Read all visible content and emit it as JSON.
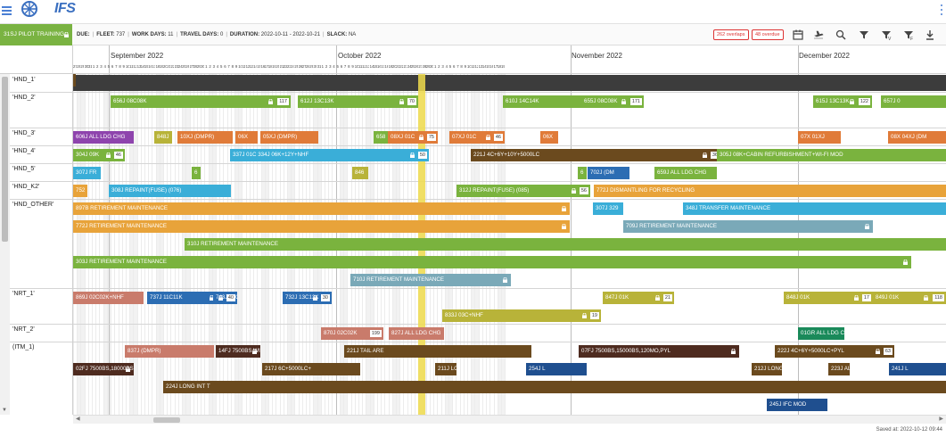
{
  "app": {
    "logo_text": "IFS"
  },
  "plan": {
    "name": "31SJ PILOT TRAINING"
  },
  "info": [
    {
      "label": "DUE:",
      "value": ""
    },
    {
      "label": "FLEET:",
      "value": "737"
    },
    {
      "label": "WORK DAYS:",
      "value": "11"
    },
    {
      "label": "TRAVEL DAYS:",
      "value": "0"
    },
    {
      "label": "DURATION:",
      "value": "2022-10-11 - 2022-10-21"
    },
    {
      "label": "SLACK:",
      "value": "NA"
    }
  ],
  "badges": {
    "overlaps": "262 overlaps",
    "overdue": "48 overdue"
  },
  "toolbar_icons": [
    "calendar-icon",
    "flight-icon",
    "search-icon",
    "filter-icon",
    "filter-v-icon",
    "filter-f-icon",
    "download-icon"
  ],
  "months": [
    {
      "name": "September 2022"
    },
    {
      "name": "October 2022"
    },
    {
      "name": "November 2022"
    },
    {
      "name": "December 2022"
    }
  ],
  "day_sequence": [
    {
      "start": 27,
      "end": 31
    },
    {
      "start": 1,
      "end": 30
    },
    {
      "start": 1,
      "end": 31
    },
    {
      "start": 1,
      "end": 30
    },
    {
      "start": 1,
      "end": 19
    }
  ],
  "resources": [
    "'HND_1'",
    "'HND_2'",
    "'HND_3'",
    "'HND_4'",
    "'HND_5'",
    "'HND_K2'",
    "'HND_OTHER'",
    "'NRT_1'",
    "'NRT_2'",
    "(ITM_1)"
  ],
  "colors": {
    "green": "#7ab33e",
    "dkgreen": "#6aa84f",
    "orange": "#e8a33a",
    "dorange": "#e07b39",
    "blue": "#3aaed8",
    "dblue": "#2c6db3",
    "navy": "#1f4f8f",
    "purple": "#8e44ad",
    "brown": "#6b4a1e",
    "dbrown": "#4e2b1f",
    "salmon": "#c97b6b",
    "teal": "#7aa9b8",
    "olive": "#b8b339",
    "tan": "#d09b64",
    "dteal": "#1a8a5a",
    "dark": "#3c3c3c",
    "gray": "#7f7f7f"
  },
  "bars": [
    {
      "label": "656J 08C08K",
      "tag": "117",
      "color": "green",
      "lock": true
    },
    {
      "label": "612J 13C13K",
      "tag": "70",
      "color": "green",
      "lock": true
    },
    {
      "label": "610J 14C14K",
      "tag": "88",
      "color": "green",
      "lock": true
    },
    {
      "label": "655J 08C08K",
      "tag": "171",
      "color": "green",
      "lock": true
    },
    {
      "label": "615J 13C13K",
      "tag": "122",
      "color": "green",
      "lock": true
    },
    {
      "label": "657J 0",
      "tag": "",
      "color": "green",
      "lock": false
    },
    {
      "label": "606J ALL LDG CHG",
      "tag": "",
      "color": "purple",
      "lock": false
    },
    {
      "label": "848J",
      "tag": "",
      "color": "olive",
      "lock": false
    },
    {
      "label": "10XJ (DMPR)",
      "tag": "",
      "color": "dorange",
      "lock": false
    },
    {
      "label": "06X",
      "tag": "",
      "color": "dorange",
      "lock": false
    },
    {
      "label": "05XJ (DMPR)",
      "tag": "",
      "color": "dorange",
      "lock": false
    },
    {
      "label": "658",
      "tag": "",
      "color": "green",
      "lock": false
    },
    {
      "label": "08XJ 01C",
      "tag": "75",
      "color": "dorange",
      "lock": true
    },
    {
      "label": "07XJ 01C",
      "tag": "46",
      "color": "dorange",
      "lock": true
    },
    {
      "label": "06X",
      "tag": "",
      "color": "dorange",
      "lock": false
    },
    {
      "label": "07X 01XJ",
      "tag": "",
      "color": "dorange",
      "lock": false
    },
    {
      "label": "08X 04XJ (DM",
      "tag": "",
      "color": "dorange",
      "lock": false
    },
    {
      "label": "304J 09K",
      "tag": "46",
      "color": "green",
      "lock": true
    },
    {
      "label": "337J 01C 334J 06K+12Y+NHF",
      "tag": "50",
      "color": "blue",
      "lock": true
    },
    {
      "label": "221J 4C+6Y+10Y+5000LC",
      "tag": "36",
      "color": "brown",
      "lock": true
    },
    {
      "label": "305J 08K+CABIN REFURBISHMENT+WI-FI MOD",
      "tag": "",
      "color": "green",
      "lock": false
    },
    {
      "label": "307J FR",
      "tag": "",
      "color": "blue",
      "lock": false
    },
    {
      "label": "6",
      "tag": "",
      "color": "green",
      "lock": false
    },
    {
      "label": "846",
      "tag": "",
      "color": "olive",
      "lock": false
    },
    {
      "label": "6",
      "tag": "",
      "color": "green",
      "lock": false
    },
    {
      "label": "702J (DM",
      "tag": "",
      "color": "dblue",
      "lock": false
    },
    {
      "label": "659J ALL LDG CHG",
      "tag": "",
      "color": "green",
      "lock": false
    },
    {
      "label": "752",
      "tag": "",
      "color": "orange",
      "lock": false
    },
    {
      "label": "308J REPAINT(FUSE) (076)",
      "tag": "",
      "color": "blue",
      "lock": false
    },
    {
      "label": "312J REPAINT(FUSE) (085)",
      "tag": "56",
      "color": "green",
      "lock": true
    },
    {
      "label": "772J DISMANTLING FOR RECYCLING",
      "tag": "",
      "color": "orange",
      "lock": false
    },
    {
      "label": "897B RETIREMENT MAINTENANCE",
      "tag": "",
      "color": "orange",
      "lock": true
    },
    {
      "label": "307J 329",
      "tag": "",
      "color": "blue",
      "lock": false
    },
    {
      "label": "348J TRANSFER MAINTENANCE",
      "tag": "",
      "color": "blue",
      "lock": false
    },
    {
      "label": "772J RETIREMENT MAINTENANCE",
      "tag": "",
      "color": "orange",
      "lock": true
    },
    {
      "label": "709J RETIREMENT MAINTENANCE",
      "tag": "",
      "color": "teal",
      "lock": true
    },
    {
      "label": "310J RETIREMENT MAINTENANCE",
      "tag": "",
      "color": "green",
      "lock": false
    },
    {
      "label": "303J RETIREMENT MAINTENANCE",
      "tag": "",
      "color": "green",
      "lock": true
    },
    {
      "label": "710J RETIREMENT MAINTENANCE",
      "tag": "",
      "color": "teal",
      "lock": true
    },
    {
      "label": "869J 02C02K+NHF",
      "tag": "",
      "color": "salmon",
      "lock": false
    },
    {
      "label": "737J 11C11K",
      "tag": "120",
      "color": "dblue",
      "lock": true
    },
    {
      "label": "743J 09C09K",
      "tag": "40",
      "color": "dblue",
      "lock": true
    },
    {
      "label": "732J 13C13K",
      "tag": "30",
      "color": "dblue",
      "lock": true
    },
    {
      "label": "847J 01K",
      "tag": "21",
      "color": "olive",
      "lock": true
    },
    {
      "label": "848J 01K",
      "tag": "17",
      "color": "olive",
      "lock": true
    },
    {
      "label": "849J 01K",
      "tag": "118",
      "color": "olive",
      "lock": true
    },
    {
      "label": "833J 03C+NHF",
      "tag": "19",
      "color": "olive",
      "lock": true
    },
    {
      "label": "870J 02C02K",
      "tag": "199",
      "color": "salmon",
      "lock": false
    },
    {
      "label": "827J ALL LDG CHG",
      "tag": "",
      "color": "salmon",
      "lock": false
    },
    {
      "label": "01GR ALL LDG CH",
      "tag": "",
      "color": "dteal",
      "lock": false
    },
    {
      "label": "837J (DMPR)",
      "tag": "",
      "color": "salmon",
      "lock": false
    },
    {
      "label": "14FJ 7500BS,WINGTIP",
      "tag": "",
      "color": "dbrown",
      "lock": true
    },
    {
      "label": "221J TAIL ARE",
      "tag": "",
      "color": "brown",
      "lock": false
    },
    {
      "label": "07FJ 7500BS,15000BS,120MO,PYL",
      "tag": "",
      "color": "dbrown",
      "lock": true
    },
    {
      "label": "222J 4C+6Y+5000LC+PYL",
      "tag": "63",
      "color": "brown",
      "lock": true
    },
    {
      "label": "02FJ 7500BS,18000BS",
      "tag": "",
      "color": "dbrown",
      "lock": true
    },
    {
      "label": "217J 6C+5000LC+",
      "tag": "",
      "color": "brown",
      "lock": false
    },
    {
      "label": "211J LONG INT TASK+5000LC+N",
      "tag": "",
      "color": "brown",
      "lock": false
    },
    {
      "label": "254J L",
      "tag": "",
      "color": "navy",
      "lock": false
    },
    {
      "label": "212J LONG INT T",
      "tag": "",
      "color": "brown",
      "lock": false
    },
    {
      "label": "223J ALL",
      "tag": "",
      "color": "brown",
      "lock": false
    },
    {
      "label": "241J L",
      "tag": "",
      "color": "navy",
      "lock": false
    },
    {
      "label": "224J LONG INT T",
      "tag": "",
      "color": "brown",
      "lock": false
    },
    {
      "label": "245J IFC MOD",
      "tag": "",
      "color": "navy",
      "lock": false
    },
    {
      "label": "217J C/O(H/STAB)",
      "tag": "",
      "color": "brown",
      "lock": false
    }
  ],
  "footer": {
    "saved": "Saved at: 2022-10-12 09:44"
  }
}
